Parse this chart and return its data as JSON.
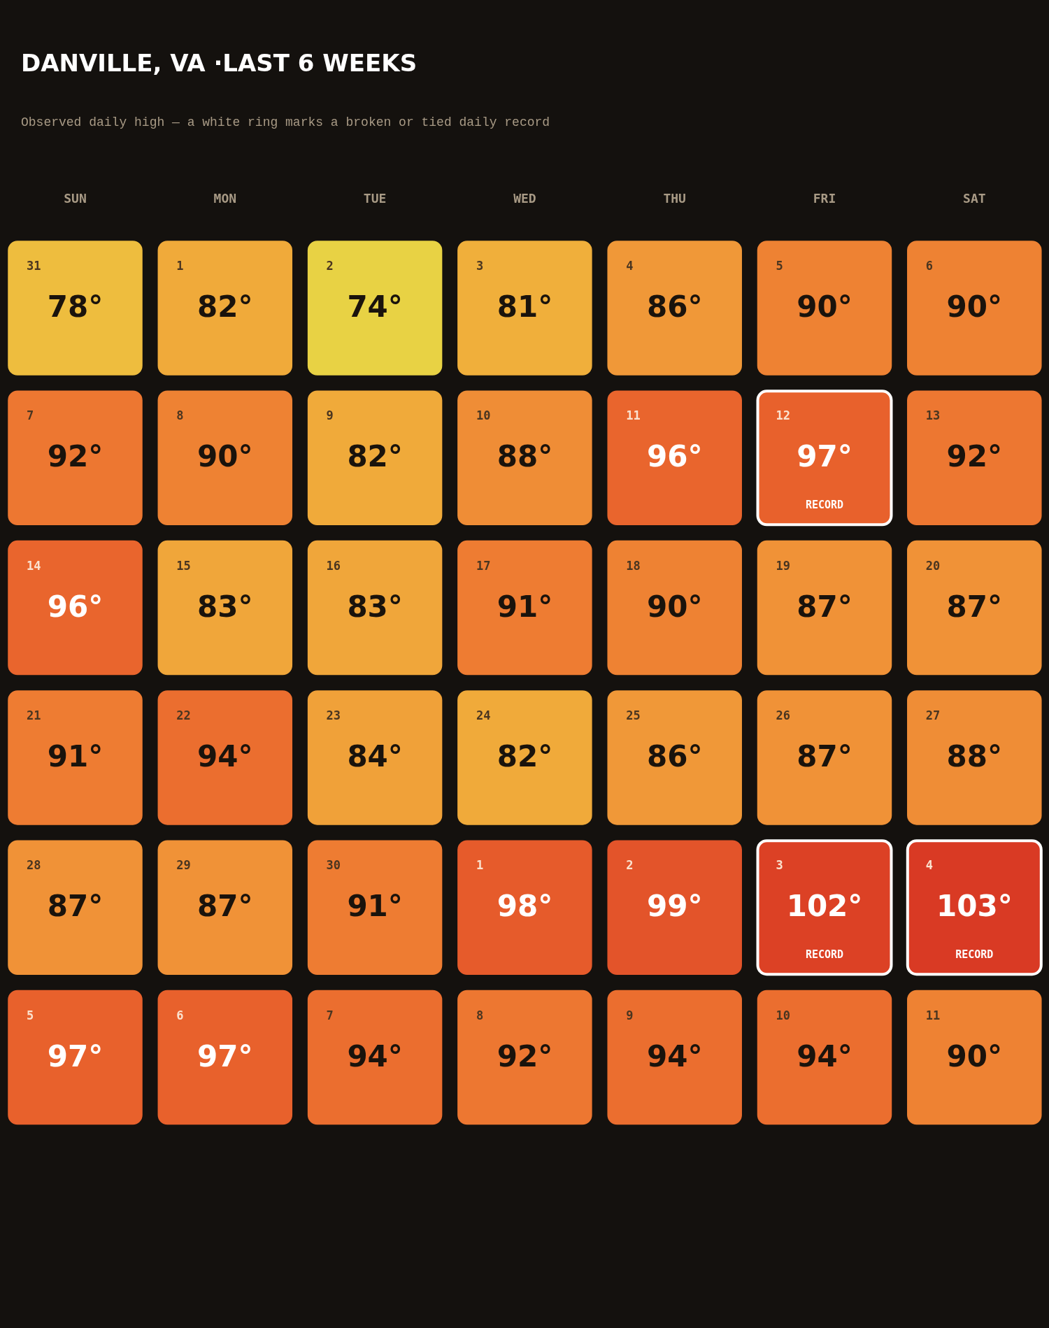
{
  "chart_data": {
    "type": "heatmap",
    "title": "DANVILLE, VA ·LAST 6 WEEKS",
    "subtitle": "Observed daily high — a white ring marks a broken or tied daily record",
    "categories": [
      "SUN",
      "MON",
      "TUE",
      "WED",
      "THU",
      "FRI",
      "SAT"
    ],
    "y_categories": [
      null,
      null,
      null,
      null,
      null,
      null
    ],
    "cells": [
      [
        78,
        82,
        74,
        81,
        86,
        90,
        90
      ],
      [
        92,
        90,
        82,
        88,
        96,
        97,
        92
      ],
      [
        96,
        83,
        83,
        91,
        90,
        87,
        87
      ],
      [
        91,
        94,
        84,
        82,
        86,
        87,
        88
      ],
      [
        87,
        87,
        91,
        98,
        99,
        102,
        103
      ],
      [
        97,
        97,
        94,
        92,
        94,
        94,
        90
      ]
    ],
    "cell_labels": [
      [
        "78°",
        "82°",
        "74°",
        "81°",
        "86°",
        "90°",
        "90°"
      ],
      [
        "92°",
        "90°",
        "82°",
        "88°",
        "96°",
        "97°",
        "92°"
      ],
      [
        "96°",
        "83°",
        "83°",
        "91°",
        "90°",
        "87°",
        "87°"
      ],
      [
        "91°",
        "94°",
        "84°",
        "82°",
        "86°",
        "87°",
        "88°"
      ],
      [
        "87°",
        "87°",
        "91°",
        "98°",
        "99°",
        "102°",
        "103°"
      ],
      [
        "97°",
        "97°",
        "94°",
        "92°",
        "94°",
        "94°",
        "90°"
      ]
    ],
    "annotations": [
      "31",
      "1",
      "2",
      "3",
      "4",
      "5",
      "6",
      "7",
      "8",
      "9",
      "10",
      "11",
      "12\nRECORD",
      "13",
      "14",
      "15",
      "16",
      "17",
      "18",
      "19",
      "20",
      "21",
      "22",
      "23",
      "24",
      "25",
      "26",
      "27",
      "28",
      "29",
      "30",
      "1",
      "2",
      "3\nRECORD",
      "4\nRECORD",
      "5",
      "6",
      "7",
      "8",
      "9",
      "10",
      "11"
    ]
  }
}
